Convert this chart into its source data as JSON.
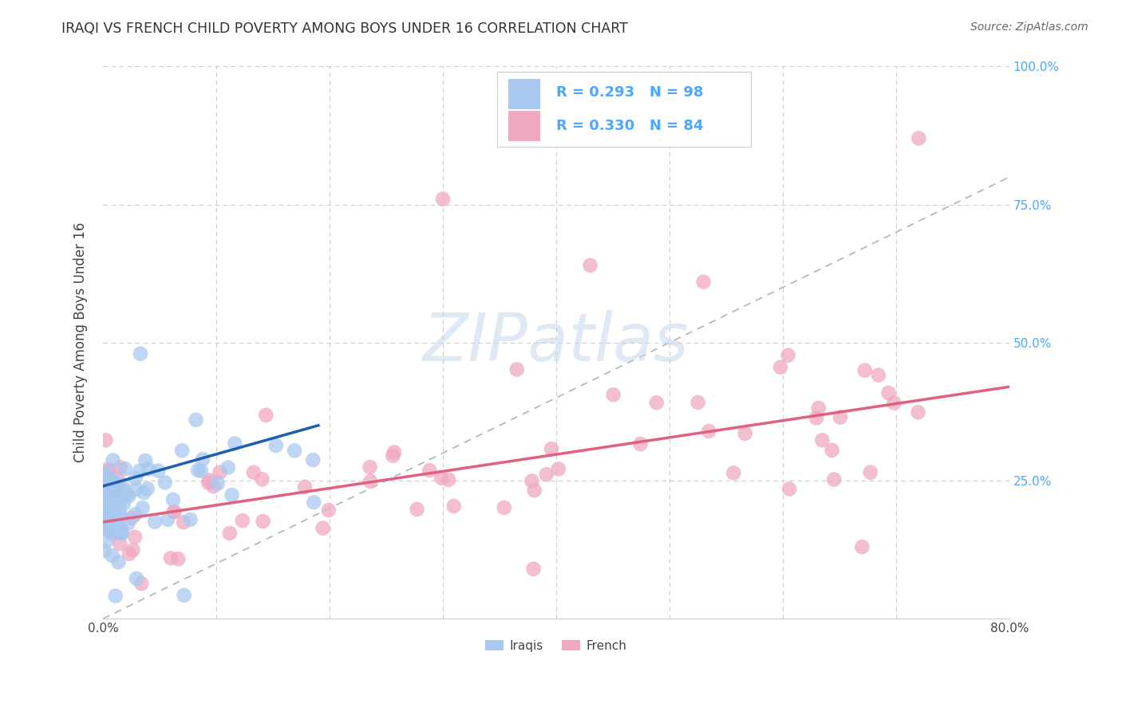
{
  "title": "IRAQI VS FRENCH CHILD POVERTY AMONG BOYS UNDER 16 CORRELATION CHART",
  "source": "Source: ZipAtlas.com",
  "ylabel": "Child Poverty Among Boys Under 16",
  "xlim": [
    0.0,
    0.8
  ],
  "ylim": [
    0.0,
    1.0
  ],
  "iraqis_color": "#a8c8f0",
  "french_color": "#f0a8c0",
  "iraqis_line_color": "#1a5fb0",
  "french_line_color": "#e06080",
  "diagonal_color": "#b0b8c0",
  "background_color": "#ffffff",
  "grid_color": "#cccccc",
  "right_tick_color": "#4da6ff",
  "iraqis_R": 0.293,
  "iraqis_N": 98,
  "french_R": 0.33,
  "french_N": 84,
  "iraqi_line_x0": 0.0,
  "iraqi_line_x1": 0.19,
  "iraqi_line_y0": 0.24,
  "iraqi_line_y1": 0.35,
  "french_line_x0": 0.0,
  "french_line_x1": 0.8,
  "french_line_y0": 0.175,
  "french_line_y1": 0.42
}
